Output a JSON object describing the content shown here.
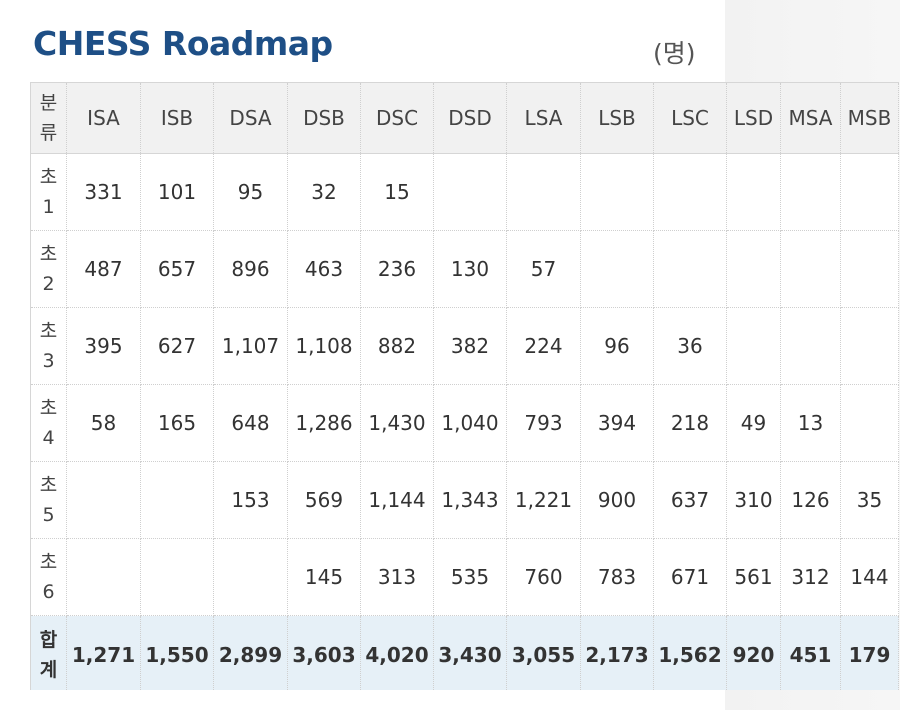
{
  "title": "CHESS Roadmap",
  "unit": "(명)",
  "table": {
    "corner_label_lines": [
      "분",
      "류"
    ],
    "columns": [
      "ISA",
      "ISB",
      "DSA",
      "DSB",
      "DSC",
      "DSD",
      "LSA",
      "LSB",
      "LSC",
      "LSD",
      "MSA",
      "MSB"
    ],
    "rows": [
      {
        "label_lines": [
          "초",
          "1"
        ],
        "cells": [
          "331",
          "101",
          "95",
          "32",
          "15",
          "",
          "",
          "",
          "",
          "",
          "",
          ""
        ]
      },
      {
        "label_lines": [
          "초",
          "2"
        ],
        "cells": [
          "487",
          "657",
          "896",
          "463",
          "236",
          "130",
          "57",
          "",
          "",
          "",
          "",
          ""
        ]
      },
      {
        "label_lines": [
          "초",
          "3"
        ],
        "cells": [
          "395",
          "627",
          "1,107",
          "1,108",
          "882",
          "382",
          "224",
          "96",
          "36",
          "",
          "",
          ""
        ]
      },
      {
        "label_lines": [
          "초",
          "4"
        ],
        "cells": [
          "58",
          "165",
          "648",
          "1,286",
          "1,430",
          "1,040",
          "793",
          "394",
          "218",
          "49",
          "13",
          ""
        ]
      },
      {
        "label_lines": [
          "초",
          "5"
        ],
        "cells": [
          "",
          "",
          "153",
          "569",
          "1,144",
          "1,343",
          "1,221",
          "900",
          "637",
          "310",
          "126",
          "35"
        ]
      },
      {
        "label_lines": [
          "초",
          "6"
        ],
        "cells": [
          "",
          "",
          "",
          "145",
          "313",
          "535",
          "760",
          "783",
          "671",
          "561",
          "312",
          "144"
        ]
      }
    ],
    "total": {
      "label_lines": [
        "합",
        "계"
      ],
      "cells": [
        "1,271",
        "1,550",
        "2,899",
        "3,603",
        "4,020",
        "3,430",
        "3,055",
        "2,173",
        "1,562",
        "920",
        "451",
        "179"
      ]
    }
  },
  "colors": {
    "title": "#1e4f86",
    "header_bg": "#f1f1f1",
    "total_bg": "#e6f0f7",
    "side_panel": "#f4f4f4"
  }
}
